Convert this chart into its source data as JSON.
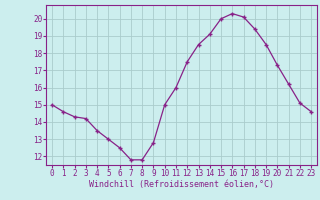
{
  "x": [
    0,
    1,
    2,
    3,
    4,
    5,
    6,
    7,
    8,
    9,
    10,
    11,
    12,
    13,
    14,
    15,
    16,
    17,
    18,
    19,
    20,
    21,
    22,
    23
  ],
  "y": [
    15.0,
    14.6,
    14.3,
    14.2,
    13.5,
    13.0,
    12.5,
    11.8,
    11.8,
    12.8,
    15.0,
    16.0,
    17.5,
    18.5,
    19.1,
    20.0,
    20.3,
    20.1,
    19.4,
    18.5,
    17.3,
    16.2,
    15.1,
    14.6
  ],
  "line_color": "#882288",
  "marker": "+",
  "marker_size": 3,
  "bg_color": "#cceeee",
  "grid_color": "#aacccc",
  "xlabel": "Windchill (Refroidissement éolien,°C)",
  "ylabel_ticks": [
    12,
    13,
    14,
    15,
    16,
    17,
    18,
    19,
    20
  ],
  "xlim": [
    -0.5,
    23.5
  ],
  "ylim": [
    11.5,
    20.8
  ],
  "tick_label_color": "#882288",
  "axis_label_color": "#882288",
  "tick_fontsize": 5.5,
  "xlabel_fontsize": 6.0
}
